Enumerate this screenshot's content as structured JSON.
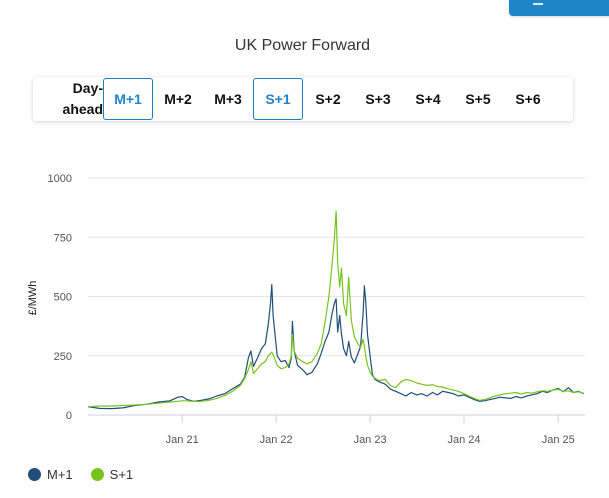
{
  "chart_data": {
    "type": "line",
    "title": "UK Power Forward",
    "ylabel": "£/MWh",
    "xlabel": "",
    "ylim": [
      0,
      1000
    ],
    "yticks": [
      0,
      250,
      500,
      750,
      1000
    ],
    "xlim": [
      "2020-01-01",
      "2025-04-15"
    ],
    "xticks": [
      {
        "date": "2021-01-01",
        "label": "Jan 21"
      },
      {
        "date": "2022-01-01",
        "label": "Jan 22"
      },
      {
        "date": "2023-01-01",
        "label": "Jan 23"
      },
      {
        "date": "2024-01-01",
        "label": "Jan 24"
      },
      {
        "date": "2025-01-01",
        "label": "Jan 25"
      }
    ],
    "grid": "horizontal",
    "legend_position": "bottom-left",
    "tabs": [
      {
        "label": "Day-ahead",
        "active": false
      },
      {
        "label": "M+1",
        "active": true
      },
      {
        "label": "M+2",
        "active": false
      },
      {
        "label": "M+3",
        "active": false
      },
      {
        "label": "S+1",
        "active": true
      },
      {
        "label": "S+2",
        "active": false
      },
      {
        "label": "S+3",
        "active": false
      },
      {
        "label": "S+4",
        "active": false
      },
      {
        "label": "S+5",
        "active": false
      },
      {
        "label": "S+6",
        "active": false
      }
    ],
    "series": [
      {
        "name": "M+1",
        "color": "#1f4e79",
        "points": [
          [
            "2020-01-01",
            35
          ],
          [
            "2020-02-15",
            28
          ],
          [
            "2020-04-01",
            27
          ],
          [
            "2020-05-15",
            30
          ],
          [
            "2020-07-01",
            40
          ],
          [
            "2020-08-15",
            45
          ],
          [
            "2020-10-01",
            55
          ],
          [
            "2020-11-15",
            60
          ],
          [
            "2020-12-15",
            75
          ],
          [
            "2021-01-01",
            78
          ],
          [
            "2021-01-20",
            65
          ],
          [
            "2021-02-15",
            58
          ],
          [
            "2021-03-15",
            62
          ],
          [
            "2021-04-15",
            68
          ],
          [
            "2021-05-15",
            80
          ],
          [
            "2021-06-15",
            90
          ],
          [
            "2021-07-15",
            110
          ],
          [
            "2021-08-15",
            130
          ],
          [
            "2021-09-01",
            160
          ],
          [
            "2021-09-15",
            240
          ],
          [
            "2021-09-25",
            270
          ],
          [
            "2021-10-05",
            205
          ],
          [
            "2021-10-20",
            240
          ],
          [
            "2021-11-05",
            280
          ],
          [
            "2021-11-20",
            300
          ],
          [
            "2021-12-01",
            380
          ],
          [
            "2021-12-10",
            470
          ],
          [
            "2021-12-15",
            550
          ],
          [
            "2021-12-20",
            420
          ],
          [
            "2022-01-05",
            250
          ],
          [
            "2022-01-20",
            225
          ],
          [
            "2022-02-05",
            230
          ],
          [
            "2022-02-20",
            200
          ],
          [
            "2022-03-01",
            240
          ],
          [
            "2022-03-05",
            395
          ],
          [
            "2022-03-12",
            270
          ],
          [
            "2022-03-25",
            210
          ],
          [
            "2022-04-15",
            190
          ],
          [
            "2022-05-01",
            170
          ],
          [
            "2022-05-20",
            180
          ],
          [
            "2022-06-10",
            215
          ],
          [
            "2022-06-25",
            260
          ],
          [
            "2022-07-10",
            310
          ],
          [
            "2022-07-25",
            350
          ],
          [
            "2022-08-05",
            420
          ],
          [
            "2022-08-15",
            470
          ],
          [
            "2022-08-22",
            490
          ],
          [
            "2022-08-28",
            350
          ],
          [
            "2022-09-05",
            420
          ],
          [
            "2022-09-12",
            340
          ],
          [
            "2022-09-20",
            280
          ],
          [
            "2022-10-01",
            250
          ],
          [
            "2022-10-10",
            310
          ],
          [
            "2022-10-20",
            245
          ],
          [
            "2022-11-01",
            220
          ],
          [
            "2022-11-15",
            260
          ],
          [
            "2022-11-25",
            290
          ],
          [
            "2022-12-05",
            430
          ],
          [
            "2022-12-10",
            545
          ],
          [
            "2022-12-15",
            480
          ],
          [
            "2022-12-22",
            340
          ],
          [
            "2023-01-01",
            250
          ],
          [
            "2023-01-10",
            170
          ],
          [
            "2023-01-20",
            150
          ],
          [
            "2023-02-05",
            140
          ],
          [
            "2023-03-01",
            130
          ],
          [
            "2023-03-20",
            110
          ],
          [
            "2023-04-10",
            100
          ],
          [
            "2023-05-01",
            90
          ],
          [
            "2023-05-20",
            80
          ],
          [
            "2023-06-10",
            95
          ],
          [
            "2023-07-01",
            85
          ],
          [
            "2023-07-20",
            90
          ],
          [
            "2023-08-10",
            80
          ],
          [
            "2023-09-01",
            95
          ],
          [
            "2023-09-20",
            85
          ],
          [
            "2023-10-10",
            100
          ],
          [
            "2023-11-01",
            95
          ],
          [
            "2023-11-20",
            90
          ],
          [
            "2023-12-10",
            80
          ],
          [
            "2024-01-01",
            85
          ],
          [
            "2024-01-20",
            75
          ],
          [
            "2024-02-10",
            65
          ],
          [
            "2024-03-01",
            58
          ],
          [
            "2024-03-20",
            60
          ],
          [
            "2024-04-10",
            65
          ],
          [
            "2024-05-01",
            70
          ],
          [
            "2024-05-20",
            75
          ],
          [
            "2024-06-10",
            72
          ],
          [
            "2024-07-01",
            70
          ],
          [
            "2024-07-20",
            78
          ],
          [
            "2024-08-10",
            72
          ],
          [
            "2024-09-01",
            80
          ],
          [
            "2024-09-20",
            85
          ],
          [
            "2024-10-10",
            90
          ],
          [
            "2024-11-01",
            100
          ],
          [
            "2024-11-20",
            95
          ],
          [
            "2024-12-10",
            105
          ],
          [
            "2025-01-01",
            112
          ],
          [
            "2025-01-20",
            98
          ],
          [
            "2025-02-10",
            115
          ],
          [
            "2025-03-01",
            95
          ],
          [
            "2025-03-20",
            100
          ],
          [
            "2025-04-10",
            90
          ]
        ]
      },
      {
        "name": "S+1",
        "color": "#77c41f",
        "points": [
          [
            "2020-01-01",
            35
          ],
          [
            "2020-02-15",
            38
          ],
          [
            "2020-04-01",
            38
          ],
          [
            "2020-05-15",
            40
          ],
          [
            "2020-07-01",
            42
          ],
          [
            "2020-08-15",
            45
          ],
          [
            "2020-10-01",
            50
          ],
          [
            "2020-11-15",
            55
          ],
          [
            "2020-12-15",
            58
          ],
          [
            "2021-01-01",
            60
          ],
          [
            "2021-01-20",
            60
          ],
          [
            "2021-02-15",
            57
          ],
          [
            "2021-03-15",
            58
          ],
          [
            "2021-04-15",
            62
          ],
          [
            "2021-05-15",
            70
          ],
          [
            "2021-06-15",
            82
          ],
          [
            "2021-07-15",
            100
          ],
          [
            "2021-08-15",
            125
          ],
          [
            "2021-09-01",
            155
          ],
          [
            "2021-09-15",
            190
          ],
          [
            "2021-09-25",
            225
          ],
          [
            "2021-10-05",
            175
          ],
          [
            "2021-10-20",
            195
          ],
          [
            "2021-11-05",
            215
          ],
          [
            "2021-11-20",
            225
          ],
          [
            "2021-12-01",
            250
          ],
          [
            "2021-12-10",
            260
          ],
          [
            "2021-12-15",
            265
          ],
          [
            "2021-12-20",
            255
          ],
          [
            "2022-01-05",
            210
          ],
          [
            "2022-01-20",
            195
          ],
          [
            "2022-02-05",
            200
          ],
          [
            "2022-02-20",
            215
          ],
          [
            "2022-03-01",
            250
          ],
          [
            "2022-03-05",
            340
          ],
          [
            "2022-03-12",
            270
          ],
          [
            "2022-03-25",
            240
          ],
          [
            "2022-04-15",
            225
          ],
          [
            "2022-05-01",
            215
          ],
          [
            "2022-05-20",
            225
          ],
          [
            "2022-06-10",
            260
          ],
          [
            "2022-06-25",
            300
          ],
          [
            "2022-07-10",
            390
          ],
          [
            "2022-07-25",
            500
          ],
          [
            "2022-08-05",
            620
          ],
          [
            "2022-08-15",
            740
          ],
          [
            "2022-08-22",
            860
          ],
          [
            "2022-08-28",
            640
          ],
          [
            "2022-09-05",
            540
          ],
          [
            "2022-09-12",
            620
          ],
          [
            "2022-09-20",
            470
          ],
          [
            "2022-10-01",
            420
          ],
          [
            "2022-10-10",
            580
          ],
          [
            "2022-10-20",
            400
          ],
          [
            "2022-11-01",
            330
          ],
          [
            "2022-11-15",
            300
          ],
          [
            "2022-11-25",
            285
          ],
          [
            "2022-12-05",
            320
          ],
          [
            "2022-12-10",
            290
          ],
          [
            "2022-12-15",
            250
          ],
          [
            "2022-12-22",
            210
          ],
          [
            "2023-01-01",
            180
          ],
          [
            "2023-01-10",
            165
          ],
          [
            "2023-01-20",
            155
          ],
          [
            "2023-02-05",
            145
          ],
          [
            "2023-03-01",
            150
          ],
          [
            "2023-03-20",
            125
          ],
          [
            "2023-04-10",
            115
          ],
          [
            "2023-05-01",
            140
          ],
          [
            "2023-05-20",
            150
          ],
          [
            "2023-06-10",
            145
          ],
          [
            "2023-07-01",
            135
          ],
          [
            "2023-07-20",
            130
          ],
          [
            "2023-08-10",
            125
          ],
          [
            "2023-09-01",
            128
          ],
          [
            "2023-09-20",
            120
          ],
          [
            "2023-10-10",
            118
          ],
          [
            "2023-11-01",
            110
          ],
          [
            "2023-11-20",
            105
          ],
          [
            "2023-12-10",
            100
          ],
          [
            "2024-01-01",
            90
          ],
          [
            "2024-01-20",
            80
          ],
          [
            "2024-02-10",
            70
          ],
          [
            "2024-03-01",
            62
          ],
          [
            "2024-03-20",
            65
          ],
          [
            "2024-04-10",
            72
          ],
          [
            "2024-05-01",
            80
          ],
          [
            "2024-05-20",
            85
          ],
          [
            "2024-06-10",
            90
          ],
          [
            "2024-07-01",
            92
          ],
          [
            "2024-07-20",
            95
          ],
          [
            "2024-08-10",
            88
          ],
          [
            "2024-09-01",
            95
          ],
          [
            "2024-09-20",
            92
          ],
          [
            "2024-10-10",
            98
          ],
          [
            "2024-11-01",
            102
          ],
          [
            "2024-11-20",
            100
          ],
          [
            "2024-12-10",
            105
          ],
          [
            "2025-01-01",
            108
          ],
          [
            "2025-01-20",
            100
          ],
          [
            "2025-02-10",
            102
          ],
          [
            "2025-03-01",
            95
          ],
          [
            "2025-03-20",
            98
          ],
          [
            "2025-04-10",
            92
          ]
        ]
      }
    ]
  }
}
